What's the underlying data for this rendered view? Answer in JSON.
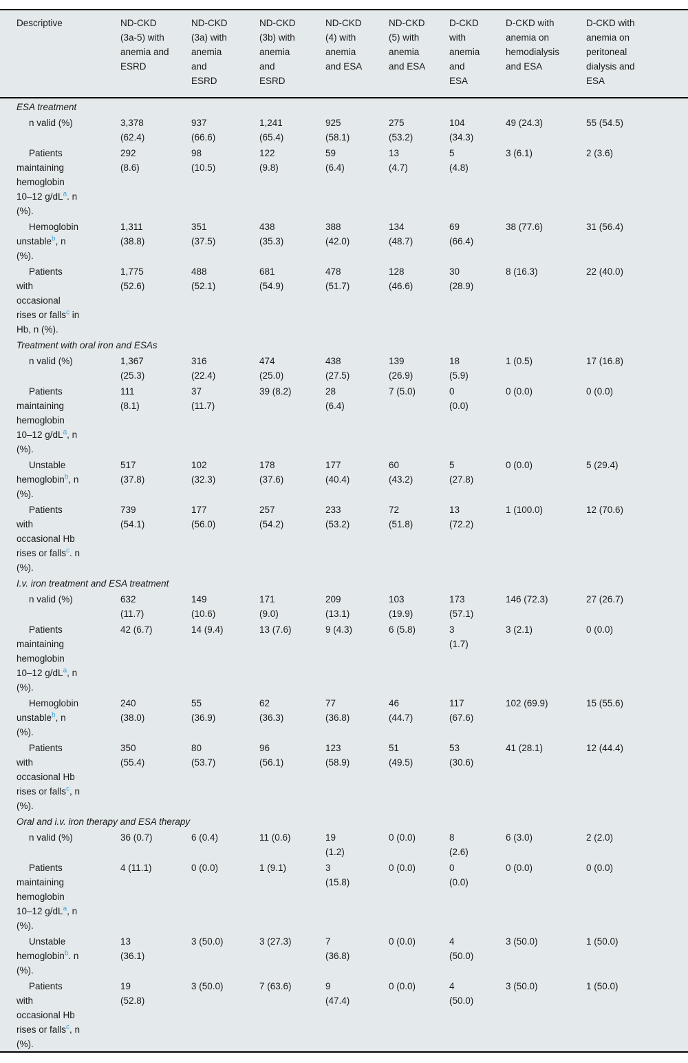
{
  "colors": {
    "table_background": "#e4e9eb",
    "border": "#000000",
    "text": "#1a1a1a",
    "footnote_marker": "#3fa3db"
  },
  "table": {
    "columns": [
      {
        "label": "Descriptive"
      },
      {
        "label": "ND-CKD\n(3a-5) with\nanemia and\nESRD"
      },
      {
        "label": "ND-CKD\n(3a) with\nanemia\nand\nESRD"
      },
      {
        "label": "ND-CKD\n(3b) with\nanemia\nand\nESRD"
      },
      {
        "label": "ND-CKD\n(4) with\nanemia\nand ESA"
      },
      {
        "label": "ND-CKD\n(5) with\nanemia\nand ESA"
      },
      {
        "label": "D-CKD\nwith\nanemia\nand\nESA"
      },
      {
        "label": "D-CKD with\nanemia on\nhemodialysis\nand ESA"
      },
      {
        "label": "D-CKD with\nanemia on\nperitoneal\ndialysis and\nESA"
      }
    ],
    "sections": [
      {
        "title": "ESA treatment",
        "rows": [
          {
            "label": "n valid (%)",
            "cells": [
              "3,378\n(62.4)",
              "937\n(66.6)",
              "1,241\n(65.4)",
              "925\n(58.1)",
              "275\n(53.2)",
              "104\n(34.3)",
              "49 (24.3)",
              "55 (54.5)"
            ]
          },
          {
            "label": "Patients\nmaintaining\nhemoglobin\n10–12 g/dL^a. n\n(%).",
            "cells": [
              "292\n(8.6)",
              "98\n(10.5)",
              "122\n(9.8)",
              "59\n(6.4)",
              "13\n(4.7)",
              "5\n(4.8)",
              "3 (6.1)",
              "2 (3.6)"
            ]
          },
          {
            "label": "Hemoglobin\nunstable^b, n\n(%).",
            "cells": [
              "1,311\n(38.8)",
              "351\n(37.5)",
              "438\n(35.3)",
              "388\n(42.0)",
              "134\n(48.7)",
              "69\n(66.4)",
              "38 (77.6)",
              "31 (56.4)"
            ]
          },
          {
            "label": "Patients\nwith\noccasional\nrises or falls^c in\nHb, n (%).",
            "cells": [
              "1,775\n(52.6)",
              "488\n(52.1)",
              "681\n(54.9)",
              "478\n(51.7)",
              "128\n(46.6)",
              "30\n(28.9)",
              "8 (16.3)",
              "22 (40.0)"
            ]
          }
        ]
      },
      {
        "title": "Treatment with oral iron and ESAs",
        "rows": [
          {
            "label": "n valid (%)",
            "cells": [
              "1,367\n(25.3)",
              "316\n(22.4)",
              "474\n(25.0)",
              "438\n(27.5)",
              "139\n(26.9)",
              "18\n(5.9)",
              "1 (0.5)",
              "17 (16.8)"
            ]
          },
          {
            "label": "Patients\nmaintaining\nhemoglobin\n10–12 g/dL^a, n\n(%).",
            "cells": [
              "111\n(8.1)",
              "37\n(11.7)",
              "39 (8.2)",
              "28\n(6.4)",
              "7 (5.0)",
              "0\n(0.0)",
              "0 (0.0)",
              "0 (0.0)"
            ]
          },
          {
            "label": "Unstable\nhemoglobin^b, n\n(%).",
            "cells": [
              "517\n(37.8)",
              "102\n(32.3)",
              "178\n(37.6)",
              "177\n(40.4)",
              "60\n(43.2)",
              "5\n(27.8)",
              "0 (0.0)",
              "5 (29.4)"
            ]
          },
          {
            "label": "Patients\nwith\noccasional Hb\nrises or falls^c. n\n(%).",
            "cells": [
              "739\n(54.1)",
              "177\n(56.0)",
              "257\n(54.2)",
              "233\n(53.2)",
              "72\n(51.8)",
              "13\n(72.2)",
              "1 (100.0)",
              "12 (70.6)"
            ]
          }
        ]
      },
      {
        "title": "I.v. iron treatment and ESA treatment",
        "rows": [
          {
            "label": "n valid (%)",
            "cells": [
              "632\n(11.7)",
              "149\n(10.6)",
              "171\n(9.0)",
              "209\n(13.1)",
              "103\n(19.9)",
              "173\n(57.1)",
              "146 (72.3)",
              "27 (26.7)"
            ]
          },
          {
            "label": "Patients\nmaintaining\nhemoglobin\n10–12 g/dL^a, n\n(%).",
            "cells": [
              "42 (6.7)",
              "14 (9.4)",
              "13 (7.6)",
              "9 (4.3)",
              "6 (5.8)",
              "3\n(1.7)",
              "3 (2.1)",
              "0 (0.0)"
            ]
          },
          {
            "label": "Hemoglobin\nunstable^b, n\n(%).",
            "cells": [
              "240\n(38.0)",
              "55\n(36.9)",
              "62\n(36.3)",
              "77\n(36.8)",
              "46\n(44.7)",
              "117\n(67.6)",
              "102 (69.9)",
              "15 (55.6)"
            ]
          },
          {
            "label": "Patients\nwith\noccasional Hb\nrises or falls^c, n\n(%).",
            "cells": [
              "350\n(55.4)",
              "80\n(53.7)",
              "96\n(56.1)",
              "123\n(58.9)",
              "51\n(49.5)",
              "53\n(30.6)",
              "41 (28.1)",
              "12 (44.4)"
            ]
          }
        ]
      },
      {
        "title": "Oral and i.v. iron therapy and ESA therapy",
        "rows": [
          {
            "label": "n valid (%)",
            "cells": [
              "36 (0.7)",
              "6 (0.4)",
              "11 (0.6)",
              "19\n(1.2)",
              "0 (0.0)",
              "8\n(2.6)",
              "6 (3.0)",
              "2 (2.0)"
            ]
          },
          {
            "label": "Patients\nmaintaining\nhemoglobin\n10–12 g/dL^a, n\n(%).",
            "cells": [
              "4 (11.1)",
              "0 (0.0)",
              "1 (9.1)",
              "3\n(15.8)",
              "0 (0.0)",
              "0\n(0.0)",
              "0 (0.0)",
              "0 (0.0)"
            ]
          },
          {
            "label": "Unstable\nhemoglobin^b. n\n(%).",
            "cells": [
              "13\n(36.1)",
              "3 (50.0)",
              "3 (27.3)",
              "7\n(36.8)",
              "0 (0.0)",
              "4\n(50.0)",
              "3 (50.0)",
              "1 (50.0)"
            ]
          },
          {
            "label": "Patients\nwith\noccasional Hb\nrises or falls^c, n\n(%).",
            "cells": [
              "19\n(52.8)",
              "3 (50.0)",
              "7 (63.6)",
              "9\n(47.4)",
              "0 (0.0)",
              "4\n(50.0)",
              "3 (50.0)",
              "1 (50.0)"
            ]
          }
        ]
      }
    ]
  }
}
